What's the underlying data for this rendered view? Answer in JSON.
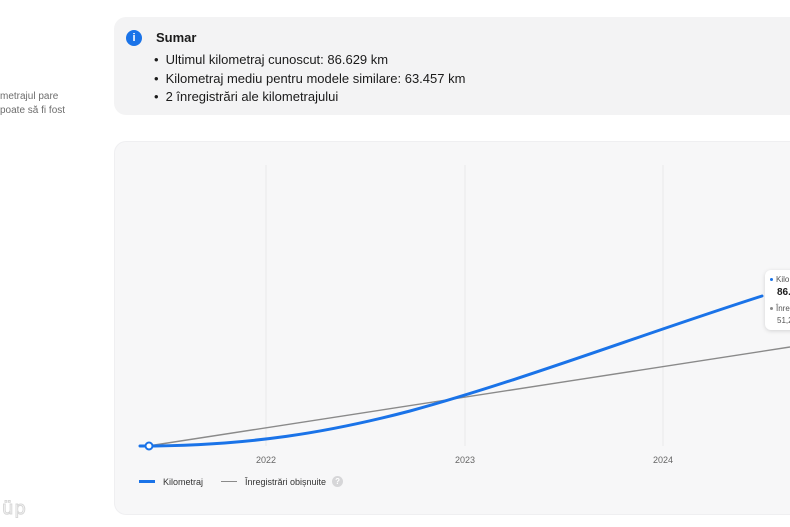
{
  "side_note": {
    "line1": "metrajul pare",
    "line2": "poate să fi fost"
  },
  "summary": {
    "icon": "info-icon",
    "title": "Sumar",
    "items": [
      "Ultimul kilometraj cunoscut: 86.629 km",
      "Kilometraj mediu pentru modele similare: 63.457 km",
      "2 înregistrări ale kilometrajului"
    ]
  },
  "chart_data": {
    "type": "line",
    "x_ticks": [
      "2022",
      "2023",
      "2024"
    ],
    "series": [
      {
        "name": "Kilometraj",
        "color": "#1a73e8"
      },
      {
        "name": "Înregistrări obișnuite",
        "color": "#8a8a8a"
      }
    ],
    "tooltip": {
      "series1_label": "Kilo",
      "series1_value": "86.",
      "series2_label": "Înre",
      "series2_value": "51,2"
    }
  },
  "legend": {
    "series1": "Kilometraj",
    "series2": "Înregistrări obișnuite",
    "help": "?"
  },
  "watermark": "üp"
}
